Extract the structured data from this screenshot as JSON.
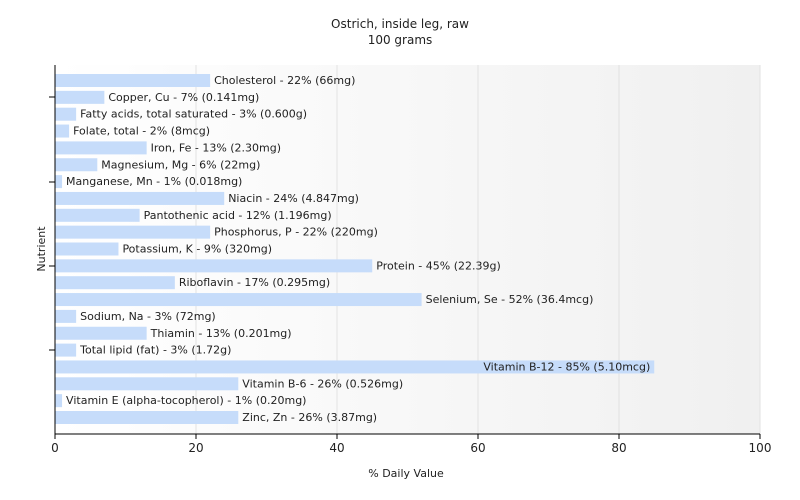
{
  "chart_data": {
    "type": "bar",
    "orientation": "horizontal",
    "title": "Ostrich, inside leg, raw",
    "subtitle": "100 grams",
    "xlabel": "% Daily Value",
    "ylabel": "Nutrient",
    "xlim": [
      0,
      100
    ],
    "xticks": [
      0,
      20,
      40,
      60,
      80,
      100
    ],
    "grid": true,
    "bar_color": "#c6dcfa",
    "categories": [
      "Cholesterol",
      "Copper, Cu",
      "Fatty acids, total saturated",
      "Folate, total",
      "Iron, Fe",
      "Magnesium, Mg",
      "Manganese, Mn",
      "Niacin",
      "Pantothenic acid",
      "Phosphorus, P",
      "Potassium, K",
      "Protein",
      "Riboflavin",
      "Selenium, Se",
      "Sodium, Na",
      "Thiamin",
      "Total lipid (fat)",
      "Vitamin B-12",
      "Vitamin B-6",
      "Vitamin E (alpha-tocopherol)",
      "Zinc, Zn"
    ],
    "values": [
      22,
      7,
      3,
      2,
      13,
      6,
      1,
      24,
      12,
      22,
      9,
      45,
      17,
      52,
      3,
      13,
      3,
      85,
      26,
      1,
      26
    ],
    "labels": [
      "Cholesterol - 22% (66mg)",
      "Copper, Cu - 7% (0.141mg)",
      "Fatty acids, total saturated - 3% (0.600g)",
      "Folate, total - 2% (8mcg)",
      "Iron, Fe - 13% (2.30mg)",
      "Magnesium, Mg - 6% (22mg)",
      "Manganese, Mn - 1% (0.018mg)",
      "Niacin - 24% (4.847mg)",
      "Pantothenic acid - 12% (1.196mg)",
      "Phosphorus, P - 22% (220mg)",
      "Potassium, K - 9% (320mg)",
      "Protein - 45% (22.39g)",
      "Riboflavin - 17% (0.295mg)",
      "Selenium, Se - 52% (36.4mcg)",
      "Sodium, Na - 3% (72mg)",
      "Thiamin - 13% (0.201mg)",
      "Total lipid (fat) - 3% (1.72g)",
      "Vitamin B-12 - 85% (5.10mcg)",
      "Vitamin B-6 - 26% (0.526mg)",
      "Vitamin E (alpha-tocopherol) - 1% (0.20mg)",
      "Zinc, Zn - 26% (3.87mg)"
    ]
  }
}
